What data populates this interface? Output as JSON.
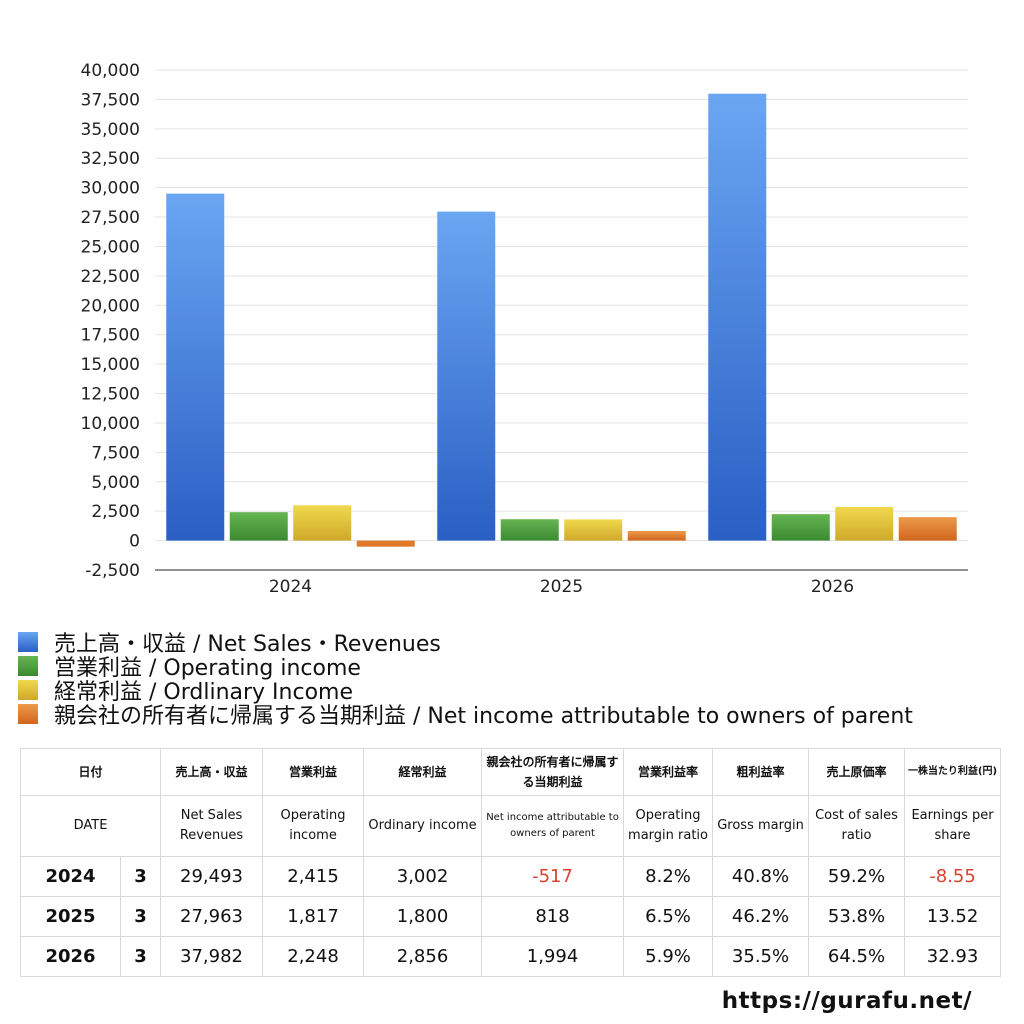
{
  "chart_data": {
    "type": "bar",
    "categories": [
      "2024",
      "2025",
      "2026"
    ],
    "ylim": [
      -2500,
      40000
    ],
    "y_ticks": [
      -2500,
      0,
      2500,
      5000,
      7500,
      10000,
      12500,
      15000,
      17500,
      20000,
      22500,
      25000,
      27500,
      30000,
      32500,
      35000,
      37500,
      40000
    ],
    "y_tick_labels": [
      "-2,500",
      "0",
      "2,500",
      "5,000",
      "7,500",
      "10,000",
      "12,500",
      "15,000",
      "17,500",
      "20,000",
      "22,500",
      "25,000",
      "27,500",
      "30,000",
      "32,500",
      "35,000",
      "37,500",
      "40,000"
    ],
    "grid": true,
    "legend_position": "bottom-left",
    "series": [
      {
        "name": "売上高・収益 / Net Sales・Revenues",
        "values": [
          29493,
          27963,
          37982
        ],
        "color": "#3b7de0",
        "color_light": "#6aa6f2",
        "color_dark": "#2a5fc4"
      },
      {
        "name": "営業利益 / Operating income",
        "values": [
          2415,
          1817,
          2248
        ],
        "color": "#4a9e3c",
        "color_light": "#66b552",
        "color_dark": "#3a8a30"
      },
      {
        "name": "経常利益 / Ordlinary Income",
        "values": [
          3002,
          1800,
          2856
        ],
        "color": "#e0c032",
        "color_light": "#f0d84e",
        "color_dark": "#cfa92a"
      },
      {
        "name": "親会社の所有者に帰属する当期利益 / Net income attributable to owners of parent",
        "values": [
          -517,
          818,
          1994
        ],
        "color": "#e07a2a",
        "color_light": "#ee9a4a",
        "color_dark": "#d0651c"
      }
    ]
  },
  "table": {
    "header_jp": [
      "日付",
      "売上高・収益",
      "営業利益",
      "経常利益",
      "親会社の所有者に帰属する当期利益",
      "営業利益率",
      "粗利益率",
      "売上原価率",
      "一株当たり利益(円)"
    ],
    "header_en": [
      "DATE",
      "Net Sales Revenues",
      "Operating income",
      "Ordinary income",
      "Net income attributable to owners of parent",
      "Operating margin ratio",
      "Gross margin",
      "Cost of sales ratio",
      "Earnings per share"
    ],
    "rows": [
      {
        "year": "2024",
        "month": "3",
        "sales": "29,493",
        "op": "2,415",
        "ord": "3,002",
        "net": "-517",
        "op_margin": "8.2%",
        "gross": "40.8%",
        "cost": "59.2%",
        "eps": "-8.55"
      },
      {
        "year": "2025",
        "month": "3",
        "sales": "27,963",
        "op": "1,817",
        "ord": "1,800",
        "net": "818",
        "op_margin": "6.5%",
        "gross": "46.2%",
        "cost": "53.8%",
        "eps": "13.52"
      },
      {
        "year": "2026",
        "month": "3",
        "sales": "37,982",
        "op": "2,248",
        "ord": "2,856",
        "net": "1,994",
        "op_margin": "5.9%",
        "gross": "35.5%",
        "cost": "64.5%",
        "eps": "32.93"
      }
    ],
    "negative_color": "#d9432f"
  },
  "watermark": "https://gurafu.net/"
}
